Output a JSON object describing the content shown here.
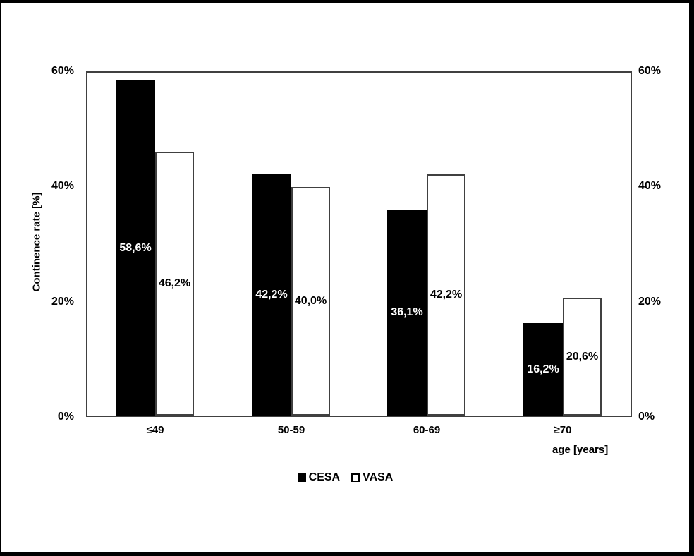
{
  "chart_data": {
    "type": "bar",
    "title": "",
    "categories": [
      "≤49",
      "50-59",
      "60-69",
      "≥70"
    ],
    "series": [
      {
        "name": "CESA",
        "values": [
          58.6,
          42.2,
          36.1,
          16.2
        ],
        "labels": [
          "58,6%",
          "42,2%",
          "36,1%",
          "16,2%"
        ],
        "fill": "#000000",
        "outline": "#000000",
        "label_color": "#ffffff"
      },
      {
        "name": "VASA",
        "values": [
          46.2,
          40.0,
          42.2,
          20.6
        ],
        "labels": [
          "46,2%",
          "40,0%",
          "42,2%",
          "20,6%"
        ],
        "fill": "#ffffff",
        "outline": "#404040",
        "label_color": "#000000"
      }
    ],
    "ylabel": "Continence rate [%]",
    "xlabel": "age [years]",
    "ylim": [
      0,
      60
    ],
    "yticks": [
      {
        "value": 0,
        "label": "0%"
      },
      {
        "value": 20,
        "label": "20%"
      },
      {
        "value": 40,
        "label": "40%"
      },
      {
        "value": 60,
        "label": "60%"
      }
    ],
    "y_axis_sides": "both",
    "grid": false,
    "legend_position": "bottom-center",
    "decimal_separator": ","
  },
  "colors": {
    "frame": "#404040",
    "page_border": "#000000",
    "background": "#ffffff"
  }
}
